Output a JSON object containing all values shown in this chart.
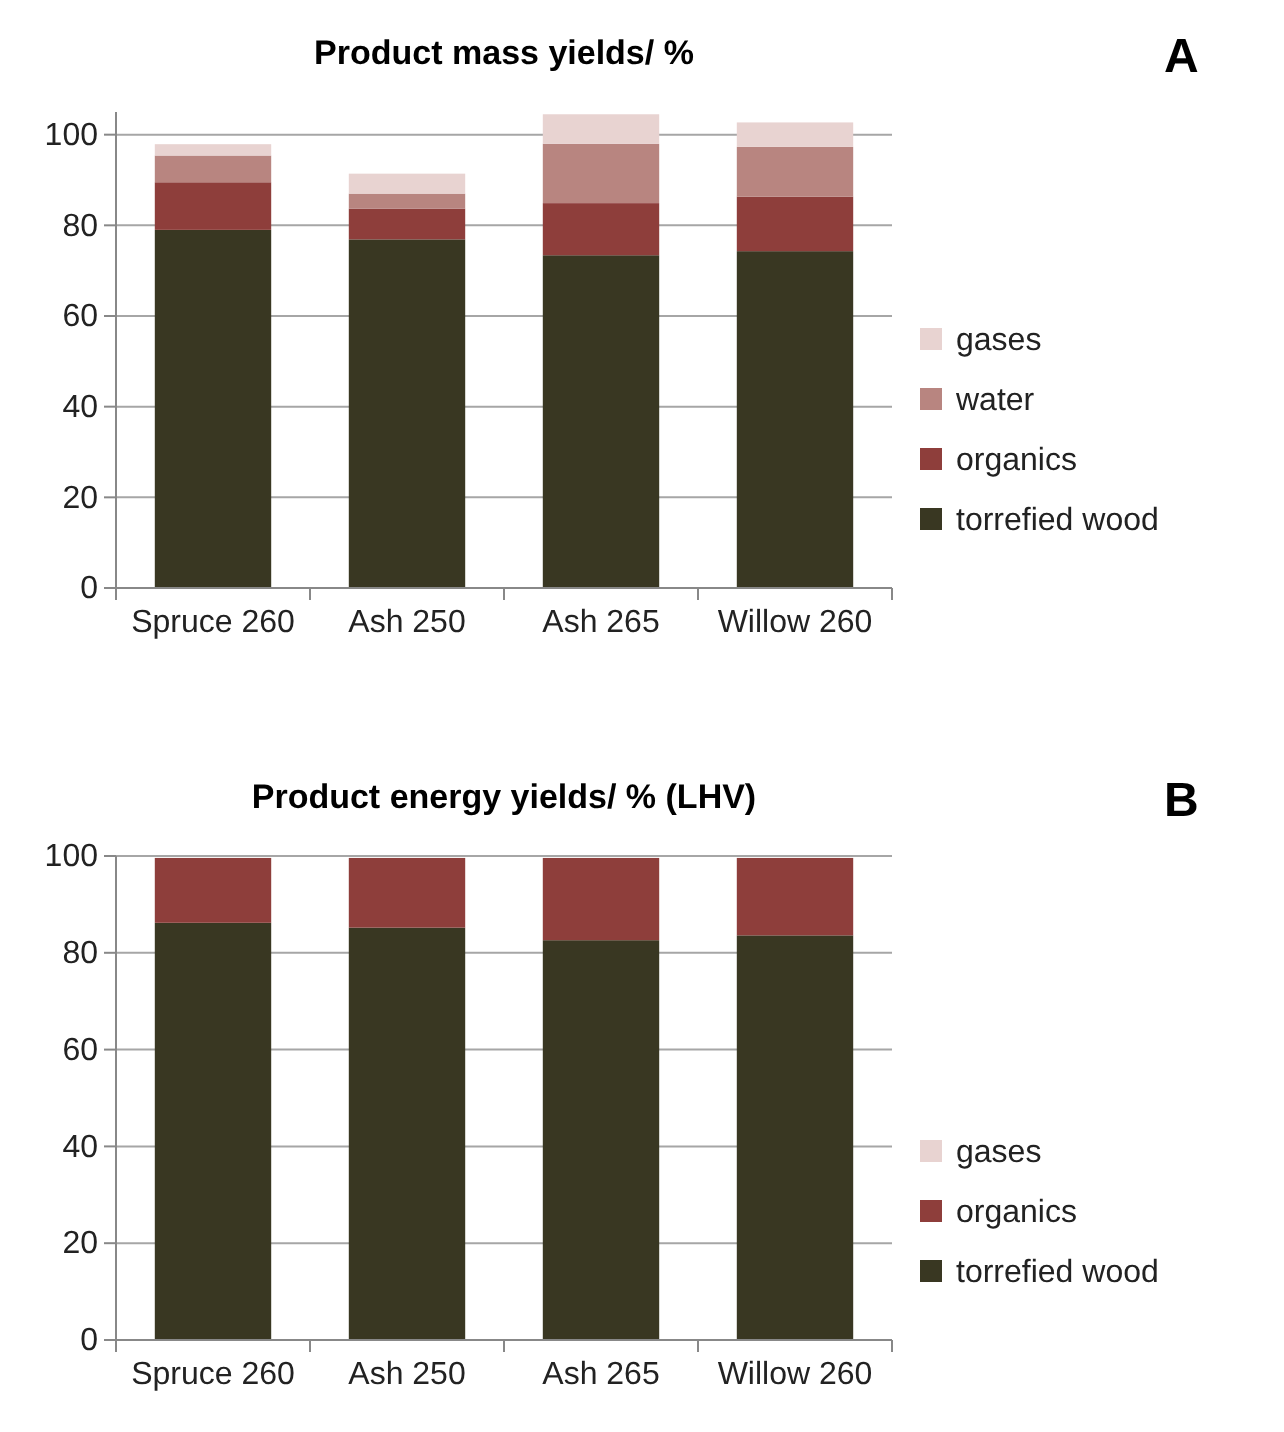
{
  "chart_data": [
    {
      "type": "bar",
      "stacked": true,
      "title": "Product mass yields/ %",
      "annotations": [
        "A"
      ],
      "categories": [
        "Spruce 260",
        "Ash 250",
        "Ash 265",
        "Willow 260"
      ],
      "series": [
        {
          "name": "torrefied wood",
          "color": "#393722",
          "values": [
            79.0,
            76.9,
            73.4,
            74.3
          ]
        },
        {
          "name": "organics",
          "color": "#8e3e3b",
          "values": [
            10.5,
            6.8,
            11.5,
            12.0
          ]
        },
        {
          "name": "water",
          "color": "#b88580",
          "values": [
            5.9,
            3.3,
            13.1,
            11.0
          ]
        },
        {
          "name": "gases",
          "color": "#e8d3d1",
          "values": [
            2.5,
            4.4,
            6.5,
            5.4
          ]
        }
      ],
      "ylim": [
        0,
        105
      ],
      "yticks": [
        0,
        20,
        40,
        60,
        80,
        100
      ],
      "grid": "y",
      "legend": "right"
    },
    {
      "type": "bar",
      "stacked": true,
      "title": "Product energy yields/ % (LHV)",
      "annotations": [
        "B"
      ],
      "categories": [
        "Spruce 260",
        "Ash 250",
        "Ash 265",
        "Willow 260"
      ],
      "series": [
        {
          "name": "torrefied wood",
          "color": "#393722",
          "values": [
            86.2,
            85.2,
            82.6,
            83.6
          ]
        },
        {
          "name": "organics",
          "color": "#8e3e3b",
          "values": [
            13.4,
            14.4,
            17.0,
            16.0
          ]
        },
        {
          "name": "gases",
          "color": "#e8d3d1",
          "values": [
            null,
            null,
            null,
            null
          ]
        }
      ],
      "ylim": [
        0,
        100
      ],
      "yticks": [
        0,
        20,
        40,
        60,
        80,
        100
      ],
      "grid": "y",
      "legend": "right"
    }
  ]
}
